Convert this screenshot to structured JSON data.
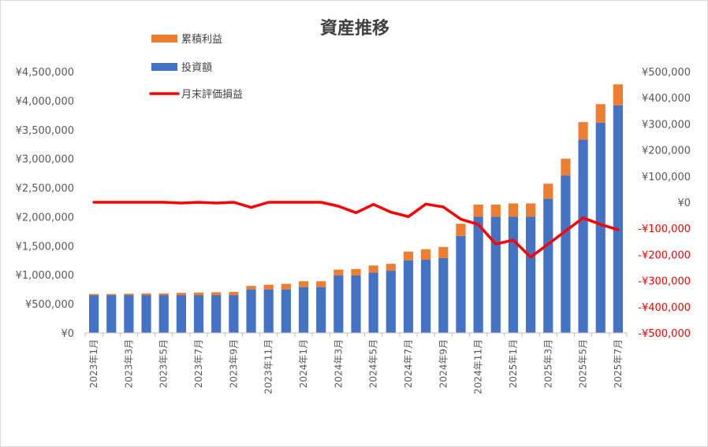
{
  "chart_data": {
    "type": "bar",
    "title": "資産推移",
    "categories": [
      "2023年1月",
      "2023年2月",
      "2023年3月",
      "2023年4月",
      "2023年5月",
      "2023年6月",
      "2023年7月",
      "2023年8月",
      "2023年9月",
      "2023年10月",
      "2023年11月",
      "2023年12月",
      "2024年1月",
      "2024年2月",
      "2024年3月",
      "2024年4月",
      "2024年5月",
      "2024年6月",
      "2024年7月",
      "2024年8月",
      "2024年9月",
      "2024年10月",
      "2024年11月",
      "2024年12月",
      "2025年1月",
      "2025年2月",
      "2025年3月",
      "2025年4月",
      "2025年5月",
      "2025年6月",
      "2025年7月"
    ],
    "x_tick_labels": [
      "2023年1月",
      "2023年3月",
      "2023年5月",
      "2023年7月",
      "2023年9月",
      "2023年11月",
      "2024年1月",
      "2024年3月",
      "2024年5月",
      "2024年7月",
      "2024年9月",
      "2024年11月",
      "2025年1月",
      "2025年3月",
      "2025年5月",
      "2025年7月"
    ],
    "series": [
      {
        "name": "投資額",
        "axis": "left",
        "kind": "stacked-bar",
        "color": "#4472c4",
        "values": [
          650000,
          650000,
          650000,
          650000,
          650000,
          650000,
          650000,
          650000,
          650000,
          750000,
          750000,
          750000,
          790000,
          790000,
          990000,
          990000,
          1040000,
          1070000,
          1250000,
          1260000,
          1290000,
          1670000,
          2000000,
          2000000,
          2000000,
          2000000,
          2310000,
          2710000,
          3330000,
          3620000,
          3920000
        ]
      },
      {
        "name": "累積利益",
        "axis": "left",
        "kind": "stacked-bar",
        "color": "#ed7d31",
        "values": [
          20000,
          20000,
          25000,
          30000,
          30000,
          40000,
          45000,
          50000,
          55000,
          60000,
          80000,
          95000,
          100000,
          100000,
          100000,
          110000,
          120000,
          120000,
          150000,
          180000,
          190000,
          210000,
          210000,
          210000,
          230000,
          230000,
          260000,
          290000,
          300000,
          320000,
          360000
        ]
      },
      {
        "name": "月末評価損益",
        "axis": "right",
        "kind": "line",
        "color": "#ff0000",
        "values": [
          0,
          0,
          0,
          0,
          0,
          -3000,
          0,
          -3000,
          0,
          -20000,
          0,
          0,
          0,
          0,
          -15000,
          -40000,
          -8000,
          -38000,
          -55000,
          -7000,
          -18000,
          -65000,
          -85000,
          -160000,
          -145000,
          -210000,
          -160000,
          -110000,
          -60000,
          -85000,
          -105000
        ]
      }
    ],
    "left_axis": {
      "min": 0,
      "max": 4500000,
      "step": 500000,
      "tick_labels": [
        "¥0",
        "¥500,000",
        "¥1,000,000",
        "¥1,500,000",
        "¥2,000,000",
        "¥2,500,000",
        "¥3,000,000",
        "¥3,500,000",
        "¥4,000,000",
        "¥4,500,000"
      ]
    },
    "right_axis": {
      "min": -500000,
      "max": 500000,
      "step": 100000,
      "tick_labels": [
        "-¥500,000",
        "-¥400,000",
        "-¥300,000",
        "-¥200,000",
        "-¥100,000",
        "¥0",
        "¥100,000",
        "¥200,000",
        "¥300,000",
        "¥400,000",
        "¥500,000"
      ],
      "negative_color": "#ff0000"
    },
    "legend": {
      "placement": "top-left",
      "entries": [
        "累積利益",
        "投資額",
        "月末評価損益"
      ]
    },
    "grid": false
  }
}
